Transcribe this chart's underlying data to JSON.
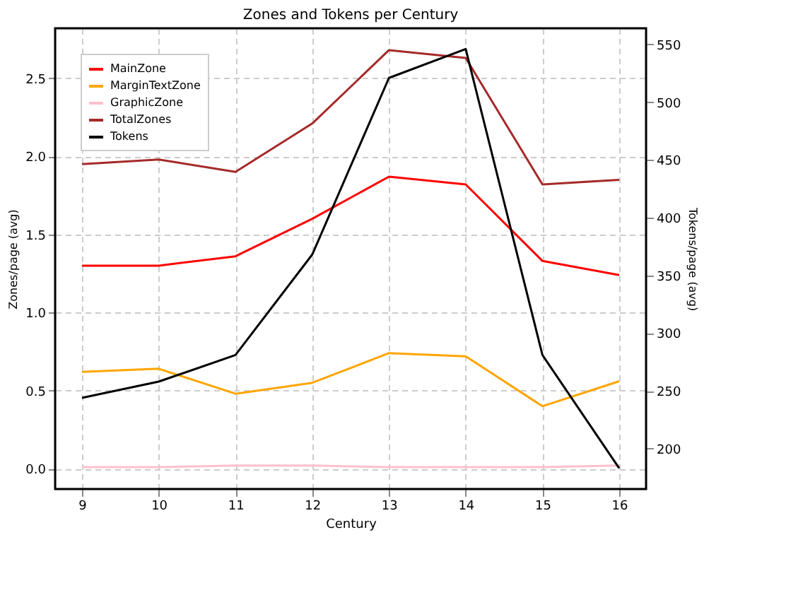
{
  "chart_data": {
    "type": "line",
    "title": "Zones and Tokens per Century",
    "xlabel": "Century",
    "ylabel": "Zones/page (avg)",
    "y2label": "Tokens/page (avg)",
    "x": [
      9,
      10,
      11,
      12,
      13,
      14,
      15,
      16
    ],
    "xlim": [
      8.65,
      16.35
    ],
    "xticks": [
      9,
      10,
      11,
      12,
      13,
      14,
      15,
      16
    ],
    "ylim": [
      -0.13,
      2.82
    ],
    "yticks": [
      {
        "value": 0,
        "label": "0.0"
      },
      0.5,
      {
        "value": 1,
        "label": "1.0"
      },
      1.5,
      {
        "value": 2,
        "label": "2.0"
      },
      2.5
    ],
    "y2lim": [
      165,
      564
    ],
    "y2ticks": [
      200,
      250,
      300,
      350,
      400,
      450,
      500,
      550
    ],
    "grid": true,
    "legend": "top left",
    "line_style": "solid",
    "marker": "none",
    "series": [
      {
        "name": "MainZone",
        "color": "#ff0000",
        "values": [
          1.3,
          1.3,
          1.36,
          1.6,
          1.87,
          1.82,
          1.33,
          1.24
        ]
      },
      {
        "name": "MarginTextZone",
        "color": "#ffa500",
        "values": [
          0.62,
          0.64,
          0.48,
          0.55,
          0.74,
          0.72,
          0.4,
          0.56
        ]
      },
      {
        "name": "GraphicZone",
        "color": "#ffc0cb",
        "values": [
          0.01,
          0.01,
          0.02,
          0.02,
          0.01,
          0.01,
          0.01,
          0.02
        ]
      },
      {
        "name": "TotalZones",
        "color": "#a52a2a",
        "values": [
          1.95,
          1.98,
          1.9,
          2.21,
          2.68,
          2.63,
          1.82,
          1.85
        ]
      },
      {
        "name": "Tokens",
        "color": "#000000",
        "axis": "y2",
        "values": [
          244,
          258,
          281,
          368,
          521,
          546,
          281,
          183
        ]
      }
    ]
  }
}
